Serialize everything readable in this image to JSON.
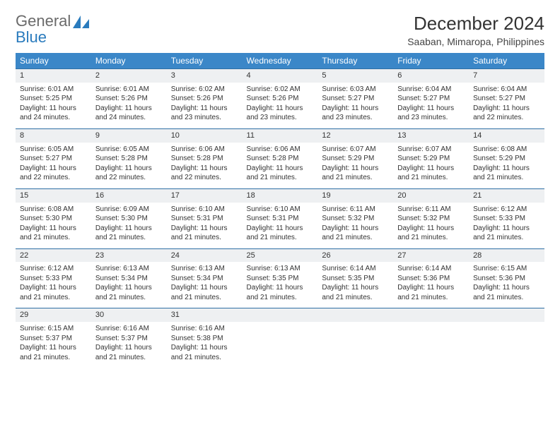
{
  "logo": {
    "part1": "General",
    "part2": "Blue"
  },
  "title": "December 2024",
  "location": "Saaban, Mimaropa, Philippines",
  "colors": {
    "header_bg": "#3b87c8",
    "header_text": "#ffffff",
    "daynum_bg": "#eef0f2",
    "row_divider": "#2e6fa5",
    "logo_gray": "#6a6a6a",
    "logo_blue": "#2a7bbd",
    "text": "#333333",
    "background": "#ffffff"
  },
  "weekdays": [
    "Sunday",
    "Monday",
    "Tuesday",
    "Wednesday",
    "Thursday",
    "Friday",
    "Saturday"
  ],
  "weeks": [
    [
      {
        "num": "1",
        "sunrise": "6:01 AM",
        "sunset": "5:25 PM",
        "daylight": "11 hours and 24 minutes."
      },
      {
        "num": "2",
        "sunrise": "6:01 AM",
        "sunset": "5:26 PM",
        "daylight": "11 hours and 24 minutes."
      },
      {
        "num": "3",
        "sunrise": "6:02 AM",
        "sunset": "5:26 PM",
        "daylight": "11 hours and 23 minutes."
      },
      {
        "num": "4",
        "sunrise": "6:02 AM",
        "sunset": "5:26 PM",
        "daylight": "11 hours and 23 minutes."
      },
      {
        "num": "5",
        "sunrise": "6:03 AM",
        "sunset": "5:27 PM",
        "daylight": "11 hours and 23 minutes."
      },
      {
        "num": "6",
        "sunrise": "6:04 AM",
        "sunset": "5:27 PM",
        "daylight": "11 hours and 23 minutes."
      },
      {
        "num": "7",
        "sunrise": "6:04 AM",
        "sunset": "5:27 PM",
        "daylight": "11 hours and 22 minutes."
      }
    ],
    [
      {
        "num": "8",
        "sunrise": "6:05 AM",
        "sunset": "5:27 PM",
        "daylight": "11 hours and 22 minutes."
      },
      {
        "num": "9",
        "sunrise": "6:05 AM",
        "sunset": "5:28 PM",
        "daylight": "11 hours and 22 minutes."
      },
      {
        "num": "10",
        "sunrise": "6:06 AM",
        "sunset": "5:28 PM",
        "daylight": "11 hours and 22 minutes."
      },
      {
        "num": "11",
        "sunrise": "6:06 AM",
        "sunset": "5:28 PM",
        "daylight": "11 hours and 21 minutes."
      },
      {
        "num": "12",
        "sunrise": "6:07 AM",
        "sunset": "5:29 PM",
        "daylight": "11 hours and 21 minutes."
      },
      {
        "num": "13",
        "sunrise": "6:07 AM",
        "sunset": "5:29 PM",
        "daylight": "11 hours and 21 minutes."
      },
      {
        "num": "14",
        "sunrise": "6:08 AM",
        "sunset": "5:29 PM",
        "daylight": "11 hours and 21 minutes."
      }
    ],
    [
      {
        "num": "15",
        "sunrise": "6:08 AM",
        "sunset": "5:30 PM",
        "daylight": "11 hours and 21 minutes."
      },
      {
        "num": "16",
        "sunrise": "6:09 AM",
        "sunset": "5:30 PM",
        "daylight": "11 hours and 21 minutes."
      },
      {
        "num": "17",
        "sunrise": "6:10 AM",
        "sunset": "5:31 PM",
        "daylight": "11 hours and 21 minutes."
      },
      {
        "num": "18",
        "sunrise": "6:10 AM",
        "sunset": "5:31 PM",
        "daylight": "11 hours and 21 minutes."
      },
      {
        "num": "19",
        "sunrise": "6:11 AM",
        "sunset": "5:32 PM",
        "daylight": "11 hours and 21 minutes."
      },
      {
        "num": "20",
        "sunrise": "6:11 AM",
        "sunset": "5:32 PM",
        "daylight": "11 hours and 21 minutes."
      },
      {
        "num": "21",
        "sunrise": "6:12 AM",
        "sunset": "5:33 PM",
        "daylight": "11 hours and 21 minutes."
      }
    ],
    [
      {
        "num": "22",
        "sunrise": "6:12 AM",
        "sunset": "5:33 PM",
        "daylight": "11 hours and 21 minutes."
      },
      {
        "num": "23",
        "sunrise": "6:13 AM",
        "sunset": "5:34 PM",
        "daylight": "11 hours and 21 minutes."
      },
      {
        "num": "24",
        "sunrise": "6:13 AM",
        "sunset": "5:34 PM",
        "daylight": "11 hours and 21 minutes."
      },
      {
        "num": "25",
        "sunrise": "6:13 AM",
        "sunset": "5:35 PM",
        "daylight": "11 hours and 21 minutes."
      },
      {
        "num": "26",
        "sunrise": "6:14 AM",
        "sunset": "5:35 PM",
        "daylight": "11 hours and 21 minutes."
      },
      {
        "num": "27",
        "sunrise": "6:14 AM",
        "sunset": "5:36 PM",
        "daylight": "11 hours and 21 minutes."
      },
      {
        "num": "28",
        "sunrise": "6:15 AM",
        "sunset": "5:36 PM",
        "daylight": "11 hours and 21 minutes."
      }
    ],
    [
      {
        "num": "29",
        "sunrise": "6:15 AM",
        "sunset": "5:37 PM",
        "daylight": "11 hours and 21 minutes."
      },
      {
        "num": "30",
        "sunrise": "6:16 AM",
        "sunset": "5:37 PM",
        "daylight": "11 hours and 21 minutes."
      },
      {
        "num": "31",
        "sunrise": "6:16 AM",
        "sunset": "5:38 PM",
        "daylight": "11 hours and 21 minutes."
      },
      {
        "empty": true
      },
      {
        "empty": true
      },
      {
        "empty": true
      },
      {
        "empty": true
      }
    ]
  ],
  "labels": {
    "sunrise": "Sunrise:",
    "sunset": "Sunset:",
    "daylight": "Daylight:"
  }
}
